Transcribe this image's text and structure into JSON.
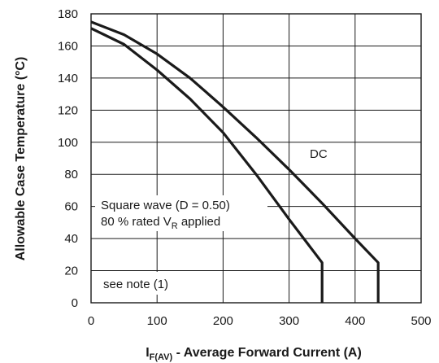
{
  "chart_data": {
    "type": "line",
    "xlabel": {
      "main": "I",
      "sub": "F(AV)",
      "rest": " - Average Forward Current (A)"
    },
    "ylabel": "Allowable Case Temperature (°C)",
    "xlim": [
      0,
      500
    ],
    "ylim": [
      0,
      180
    ],
    "xticks": [
      0,
      100,
      200,
      300,
      400,
      500
    ],
    "yticks": [
      0,
      20,
      40,
      60,
      80,
      100,
      120,
      140,
      160,
      180
    ],
    "grid": true,
    "series": [
      {
        "name": "DC",
        "x": [
          0,
          50,
          100,
          150,
          200,
          250,
          300,
          350,
          400,
          435,
          435
        ],
        "y": [
          175,
          167,
          155,
          140,
          122,
          103,
          83,
          62,
          40,
          25,
          0
        ]
      },
      {
        "name": "Square wave (D = 0.50)",
        "x": [
          0,
          50,
          100,
          150,
          200,
          250,
          300,
          350,
          350
        ],
        "y": [
          171,
          161,
          145,
          127,
          106,
          80,
          52,
          25,
          0
        ]
      }
    ],
    "annotations": {
      "dc": "DC",
      "square_line1": "Square wave (D = 0.50)",
      "square_line2_pre": "80 % rated V",
      "square_line2_sub": "R",
      "square_line2_post": " applied",
      "note": "see note (1)"
    }
  }
}
